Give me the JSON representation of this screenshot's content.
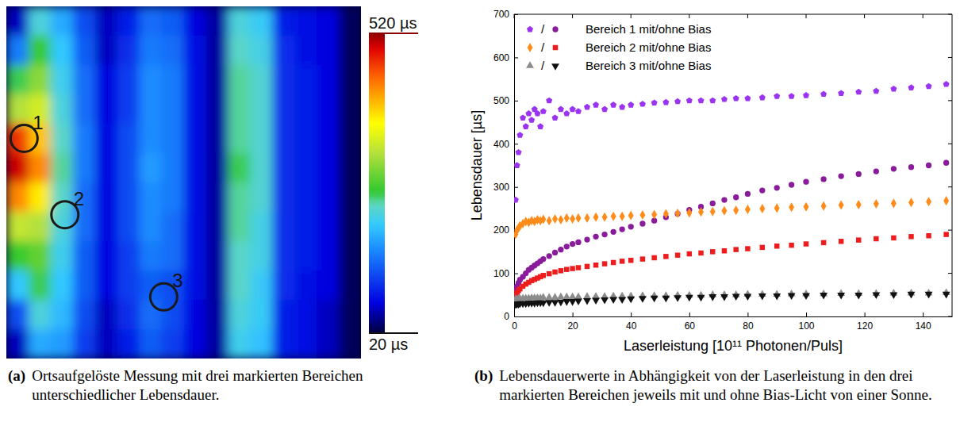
{
  "chart_data": [
    {
      "type": "heatmap",
      "label": "(a)",
      "caption": "Ortsaufgelöste Messung mit drei markierten Bereichen unterschiedlicher Lebensdauer.",
      "xlim": [
        0,
        16
      ],
      "ylim": [
        0,
        12
      ],
      "tick_labels": false,
      "cells": [
        [
          60,
          220,
          180,
          120,
          60,
          90,
          140,
          130,
          70,
          50,
          220,
          205,
          90,
          80,
          70,
          30
        ],
        [
          150,
          260,
          200,
          130,
          60,
          100,
          150,
          140,
          80,
          50,
          230,
          215,
          100,
          80,
          70,
          30
        ],
        [
          250,
          300,
          210,
          140,
          70,
          110,
          160,
          150,
          80,
          50,
          240,
          225,
          100,
          90,
          70,
          30
        ],
        [
          320,
          340,
          220,
          140,
          70,
          110,
          160,
          150,
          80,
          50,
          240,
          225,
          100,
          90,
          70,
          30
        ],
        [
          470,
          400,
          230,
          150,
          70,
          120,
          160,
          150,
          80,
          50,
          240,
          225,
          100,
          90,
          70,
          30
        ],
        [
          500,
          430,
          240,
          150,
          70,
          120,
          170,
          150,
          80,
          50,
          250,
          225,
          100,
          90,
          70,
          30
        ],
        [
          430,
          380,
          230,
          140,
          70,
          120,
          160,
          150,
          80,
          50,
          240,
          225,
          100,
          90,
          70,
          30
        ],
        [
          330,
          320,
          220,
          140,
          70,
          120,
          160,
          140,
          80,
          50,
          240,
          215,
          100,
          90,
          70,
          30
        ],
        [
          260,
          280,
          210,
          130,
          70,
          110,
          150,
          140,
          80,
          50,
          230,
          215,
          100,
          90,
          70,
          30
        ],
        [
          200,
          250,
          200,
          130,
          70,
          110,
          130,
          120,
          80,
          50,
          230,
          205,
          100,
          80,
          70,
          30
        ],
        [
          120,
          220,
          190,
          120,
          60,
          100,
          140,
          120,
          70,
          50,
          220,
          205,
          90,
          80,
          60,
          30
        ],
        [
          60,
          180,
          170,
          110,
          60,
          90,
          130,
          110,
          70,
          50,
          210,
          195,
          90,
          80,
          60,
          30
        ]
      ],
      "colorbar_range": [
        20,
        520
      ],
      "colorbar_ticks": [
        {
          "value": 520,
          "label": "520 µs"
        },
        {
          "value": 20,
          "label": "20 µs"
        }
      ],
      "annotations": [
        {
          "text": "1",
          "x": 0.8,
          "y": 4.5
        },
        {
          "text": "2",
          "x": 2.64,
          "y": 7.1
        },
        {
          "text": "3",
          "x": 7.1,
          "y": 9.9
        }
      ]
    },
    {
      "type": "scatter",
      "label": "(b)",
      "caption": "Lebensdauerwerte in Abhängigkeit von der Laserleistung in den drei markierten Bereichen jeweils mit und ohne Bias-Licht von einer Sonne.",
      "x_label": "Laserleistung [10¹¹ Photonen/Puls]",
      "y_label": "Lebensdauer [µs]",
      "xlim": [
        0,
        150
      ],
      "ylim": [
        0,
        700
      ],
      "xticks": [
        0,
        20,
        40,
        60,
        80,
        100,
        120,
        140
      ],
      "yticks": [
        0,
        100,
        200,
        300,
        400,
        500,
        600,
        700
      ],
      "legend": "top-left",
      "legend_separator": "/",
      "x": [
        0.5,
        1,
        1.5,
        2,
        3,
        4,
        5,
        6,
        7,
        8,
        9,
        10,
        12,
        14,
        16,
        18,
        20,
        22,
        25,
        28,
        31,
        34,
        37,
        40,
        44,
        48,
        52,
        56,
        60,
        64,
        68,
        72,
        76,
        80,
        85,
        90,
        95,
        100,
        106,
        112,
        118,
        124,
        130,
        136,
        142,
        148
      ],
      "series": [
        {
          "name": "Bereich 1 mit/ohne Bias",
          "traces": [
            {
              "color": "#9b34f0",
              "marker": "pentagon",
              "values": [
                270,
                350,
                380,
                420,
                460,
                440,
                470,
                455,
                480,
                470,
                440,
                475,
                500,
                460,
                480,
                470,
                480,
                475,
                485,
                490,
                480,
                490,
                485,
                490,
                492,
                495,
                496,
                498,
                500,
                500,
                500,
                503,
                505,
                505,
                507,
                510,
                510,
                512,
                515,
                517,
                520,
                522,
                527,
                530,
                533,
                538
              ]
            },
            {
              "color": "#8a1c9c",
              "marker": "circle",
              "values": [
                60,
                70,
                78,
                85,
                92,
                100,
                108,
                113,
                118,
                123,
                128,
                133,
                140,
                148,
                155,
                162,
                168,
                172,
                178,
                185,
                190,
                196,
                202,
                208,
                215,
                222,
                230,
                238,
                247,
                254,
                262,
                270,
                276,
                284,
                292,
                298,
                305,
                312,
                318,
                325,
                330,
                336,
                342,
                346,
                350,
                356
              ]
            }
          ]
        },
        {
          "name": "Bereich 2 mit/ohne Bias",
          "traces": [
            {
              "color": "#ff8c1a",
              "marker": "diamond",
              "values": [
                190,
                200,
                205,
                210,
                215,
                220,
                218,
                222,
                220,
                224,
                222,
                225,
                222,
                226,
                224,
                228,
                226,
                228,
                228,
                230,
                230,
                232,
                232,
                234,
                235,
                236,
                238,
                239,
                240,
                242,
                243,
                245,
                246,
                248,
                250,
                251,
                253,
                254,
                256,
                258,
                259,
                261,
                262,
                264,
                266,
                268
              ]
            },
            {
              "color": "#ee1c1c",
              "marker": "square",
              "values": [
                50,
                55,
                60,
                64,
                70,
                75,
                79,
                83,
                86,
                89,
                92,
                95,
                99,
                103,
                106,
                109,
                111,
                113,
                116,
                119,
                122,
                125,
                128,
                130,
                133,
                136,
                139,
                142,
                145,
                147,
                150,
                152,
                155,
                157,
                160,
                163,
                165,
                168,
                171,
                174,
                177,
                180,
                182,
                185,
                187,
                190
              ]
            }
          ]
        },
        {
          "name": "Bereich 3 mit/ohne Bias",
          "traces": [
            {
              "color": "#8c8c8c",
              "marker": "triangle-up",
              "values": [
                40,
                40,
                41,
                41,
                42,
                42,
                42,
                43,
                43,
                43,
                43,
                44,
                44,
                44,
                45,
                45,
                45,
                45,
                46,
                46,
                46,
                47,
                47,
                47,
                48,
                48,
                48,
                49,
                49,
                49,
                50,
                50,
                50,
                51,
                51,
                51,
                52,
                52,
                52,
                53,
                53,
                53,
                54,
                54,
                54,
                55
              ]
            },
            {
              "color": "#111111",
              "marker": "triangle-down",
              "values": [
                28,
                29,
                29,
                30,
                30,
                30,
                31,
                31,
                31,
                32,
                32,
                32,
                33,
                33,
                34,
                35,
                35,
                36,
                37,
                38,
                39,
                40,
                40,
                41,
                42,
                43,
                43,
                44,
                45,
                45,
                46,
                46,
                47,
                47,
                48,
                48,
                49,
                49,
                50,
                50,
                50,
                51,
                51,
                52,
                52,
                52
              ]
            }
          ]
        }
      ]
    }
  ]
}
